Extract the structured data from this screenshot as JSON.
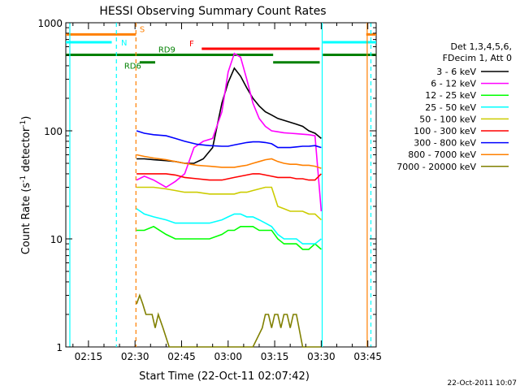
{
  "chart_data": {
    "type": "line",
    "title": "HESSI Observing Summary Count Rates",
    "xlabel": "Start Time (22-Oct-11 02:07:42)",
    "ylabel_main": "Count Rate (s",
    "ylabel_sup": "-1",
    "ylabel_mid": " detector",
    "ylabel_sup2": "-1",
    "ylabel_end": ")",
    "y_scale": "log",
    "ylim": [
      1,
      1000
    ],
    "xlim_minutes": [
      7.7,
      107.7
    ],
    "x_ticks": [
      {
        "label": "02:15",
        "minutes": 15
      },
      {
        "label": "02:30",
        "minutes": 30
      },
      {
        "label": "02:45",
        "minutes": 45
      },
      {
        "label": "03:00",
        "minutes": 60
      },
      {
        "label": "03:15",
        "minutes": 75
      },
      {
        "label": "03:30",
        "minutes": 90
      },
      {
        "label": "03:45",
        "minutes": 105
      }
    ],
    "y_ticks": [
      {
        "label": "1",
        "value": 1
      },
      {
        "label": "10",
        "value": 10
      },
      {
        "label": "100",
        "value": 100
      },
      {
        "label": "1000",
        "value": 1000
      }
    ],
    "legend_header": [
      "Det 1,3,4,5,6,",
      "FDecim 1, Att 0"
    ],
    "series": [
      {
        "name": "3 - 6 keV",
        "color": "#000000",
        "x": [
          30.5,
          33,
          36,
          40,
          43,
          46,
          49,
          52,
          55,
          58,
          60,
          62,
          64,
          66,
          68,
          70,
          72,
          74,
          76,
          78,
          80,
          82,
          84,
          86,
          88,
          90
        ],
        "y": [
          55,
          55,
          54,
          53,
          52,
          50,
          50,
          55,
          70,
          180,
          280,
          380,
          320,
          250,
          200,
          170,
          150,
          140,
          130,
          125,
          120,
          115,
          110,
          100,
          95,
          85
        ]
      },
      {
        "name": "6 - 12 keV",
        "color": "#ff00ff",
        "x": [
          30.5,
          33,
          36,
          40,
          43,
          46,
          49,
          52,
          55,
          58,
          60,
          62,
          64,
          66,
          68,
          70,
          72,
          74,
          76,
          78,
          80,
          82,
          84,
          86,
          88,
          90
        ],
        "y": [
          35,
          38,
          35,
          30,
          34,
          40,
          70,
          80,
          85,
          150,
          350,
          520,
          480,
          300,
          180,
          130,
          110,
          100,
          98,
          96,
          95,
          94,
          93,
          92,
          90,
          18
        ]
      },
      {
        "name": "12 - 25 keV",
        "color": "#00ff00",
        "x": [
          30.5,
          33,
          36,
          40,
          43,
          46,
          50,
          54,
          58,
          60,
          62,
          64,
          66,
          68,
          70,
          72,
          74,
          76,
          78,
          80,
          82,
          84,
          86,
          88,
          90
        ],
        "y": [
          12,
          12,
          13,
          11,
          10,
          10,
          10,
          10,
          11,
          12,
          12,
          13,
          13,
          13,
          12,
          12,
          12,
          10,
          9,
          9,
          9,
          8,
          8,
          9,
          8
        ]
      },
      {
        "name": "25 - 50 keV",
        "color": "#00ffff",
        "x": [
          30.5,
          33,
          36,
          40,
          43,
          46,
          50,
          54,
          58,
          60,
          62,
          64,
          66,
          68,
          70,
          72,
          74,
          76,
          78,
          80,
          82,
          84,
          86,
          88,
          90
        ],
        "y": [
          19,
          17,
          16,
          15,
          14,
          14,
          14,
          14,
          15,
          16,
          17,
          17,
          16,
          16,
          15,
          14,
          13,
          11,
          10,
          10,
          10,
          9,
          9,
          9,
          10
        ]
      },
      {
        "name": "50 - 100 keV",
        "color": "#cccc00",
        "x": [
          30.5,
          33,
          36,
          40,
          43,
          46,
          50,
          54,
          58,
          60,
          62,
          64,
          66,
          68,
          70,
          72,
          74,
          76,
          78,
          80,
          82,
          84,
          86,
          88,
          90
        ],
        "y": [
          30,
          30,
          30,
          29,
          28,
          27,
          27,
          26,
          26,
          26,
          26,
          27,
          27,
          28,
          29,
          30,
          30,
          20,
          19,
          18,
          18,
          18,
          17,
          17,
          15
        ]
      },
      {
        "name": "100 - 300 keV",
        "color": "#ff0000",
        "x": [
          30.5,
          33,
          36,
          40,
          43,
          46,
          50,
          54,
          58,
          60,
          62,
          64,
          66,
          68,
          70,
          72,
          74,
          76,
          78,
          80,
          82,
          84,
          86,
          88,
          90
        ],
        "y": [
          40,
          40,
          40,
          40,
          39,
          37,
          36,
          35,
          35,
          36,
          37,
          38,
          39,
          40,
          40,
          39,
          38,
          37,
          37,
          37,
          36,
          36,
          35,
          35,
          40
        ]
      },
      {
        "name": "300 - 800 keV",
        "color": "#0000ff",
        "x": [
          30.5,
          33,
          36,
          40,
          43,
          46,
          50,
          54,
          58,
          60,
          62,
          64,
          66,
          68,
          70,
          72,
          74,
          76,
          78,
          80,
          82,
          84,
          86,
          88,
          90
        ],
        "y": [
          100,
          95,
          92,
          90,
          85,
          80,
          75,
          73,
          72,
          72,
          74,
          76,
          78,
          79,
          79,
          78,
          76,
          70,
          70,
          70,
          71,
          72,
          72,
          73,
          70
        ]
      },
      {
        "name": "800 - 7000 keV",
        "color": "#ff8000",
        "x": [
          30.5,
          33,
          36,
          40,
          43,
          46,
          50,
          54,
          58,
          60,
          62,
          64,
          66,
          68,
          70,
          72,
          74,
          76,
          78,
          80,
          82,
          84,
          86,
          88,
          90
        ],
        "y": [
          60,
          58,
          56,
          54,
          52,
          50,
          48,
          47,
          46,
          46,
          46,
          47,
          48,
          50,
          52,
          54,
          55,
          52,
          50,
          49,
          49,
          48,
          48,
          47,
          45
        ]
      },
      {
        "name": "7000 - 20000 keV",
        "color": "#808000",
        "x": [
          30.5,
          31.5,
          32.5,
          33.5,
          34.5,
          35.5,
          36.5,
          37.5,
          39,
          41,
          44,
          47,
          50,
          53,
          56,
          59,
          62,
          65,
          68,
          71,
          72,
          73,
          74,
          75,
          76,
          77,
          78,
          79,
          80,
          81,
          82,
          84,
          86,
          88,
          90
        ],
        "y": [
          2.5,
          3,
          2.5,
          2,
          2,
          2,
          1.5,
          2,
          1.5,
          1,
          1,
          1,
          1,
          1,
          1,
          1,
          1,
          1,
          1,
          1.5,
          2,
          2,
          1.5,
          2,
          2,
          1.5,
          2,
          2,
          1.5,
          2,
          2,
          1,
          1,
          1,
          1
        ]
      }
    ],
    "flags": [
      {
        "label": "S",
        "color": "#ff8000",
        "label_color": "#ff8000",
        "segments": [
          [
            7.7,
            30.3
          ],
          [
            104.5,
            107.7
          ]
        ],
        "level": 780
      },
      {
        "label": "N",
        "color": "#00ffff",
        "label_color": "#00ffff",
        "segments": [
          [
            7.7,
            22.5
          ],
          [
            90.5,
            107.7
          ]
        ],
        "level": 660
      },
      {
        "label": "F",
        "color": "#ff0000",
        "label_color": "#ff0000",
        "segments": [
          [
            51.5,
            89.5
          ]
        ],
        "level": 575
      },
      {
        "label": "RD9",
        "color": "#008000",
        "label_color": "#008000",
        "segments": [
          [
            7.7,
            74.5
          ],
          [
            90.5,
            107.7
          ]
        ],
        "level": 505
      },
      {
        "label": "RD6",
        "color": "#008000",
        "label_color": "#008000",
        "segments": [
          [
            31.5,
            36.5
          ],
          [
            74.5,
            89.5
          ]
        ],
        "level": 430
      }
    ],
    "vlines": [
      {
        "minutes": 9.0,
        "color": "#00ffff",
        "dash": "solid"
      },
      {
        "minutes": 24.0,
        "color": "#00ffff",
        "dash": "dashed"
      },
      {
        "minutes": 30.3,
        "color": "#ff8000",
        "dash": "dashed"
      },
      {
        "minutes": 90.3,
        "color": "#00ffff",
        "dash": "solid"
      },
      {
        "minutes": 104.8,
        "color": "#ff8000",
        "dash": "solid"
      },
      {
        "minutes": 106.0,
        "color": "#00ffff",
        "dash": "dashed"
      }
    ],
    "grid": false,
    "legend_position": "right"
  },
  "footer_timestamp": "22-Oct-2011 10:07"
}
